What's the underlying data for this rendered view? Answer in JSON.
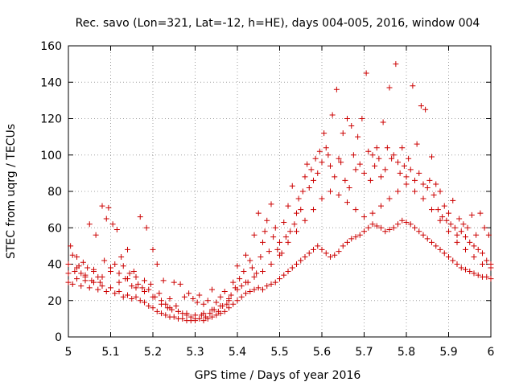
{
  "chart_data": {
    "type": "scatter",
    "title": "Rec. savo (Lon=321, Lat=-12, h=HE), days 004-005, 2016, window 004",
    "xlabel": "GPS time / Days of year 2016",
    "ylabel": "STEC from uqrg / TECUs",
    "xlim": [
      5,
      6
    ],
    "ylim": [
      0,
      160
    ],
    "xticks": [
      "5",
      "5.1",
      "5.2",
      "5.3",
      "5.4",
      "5.5",
      "5.6",
      "5.7",
      "5.8",
      "5.9",
      "6"
    ],
    "yticks": [
      "0",
      "20",
      "40",
      "60",
      "80",
      "100",
      "120",
      "140",
      "160"
    ],
    "grid": true,
    "marker": "plus",
    "color": "#cc0000",
    "series": [
      {
        "x": [
          5.0,
          5.005,
          5.01,
          5.015,
          5.02,
          5.025,
          5.03,
          5.035,
          5.04,
          5.045,
          5.05,
          5.055,
          5.06,
          5.065,
          5.07,
          5.075,
          5.08,
          5.085,
          5.09,
          5.095,
          5.1,
          5.105,
          5.11,
          5.115,
          5.12,
          5.125,
          5.13,
          5.135,
          5.14,
          5.145,
          5.15,
          5.155,
          5.16,
          5.165,
          5.17,
          5.175,
          5.18,
          5.185,
          5.19,
          5.195,
          5.2,
          5.205,
          5.21,
          5.215,
          5.22,
          5.225,
          5.23,
          5.235,
          5.24,
          5.245,
          5.25,
          5.255,
          5.26,
          5.265,
          5.27,
          5.275,
          5.28,
          5.285,
          5.29,
          5.295,
          5.3,
          5.305,
          5.31,
          5.315,
          5.32,
          5.325,
          5.33,
          5.335,
          5.34,
          5.345,
          5.35,
          5.355,
          5.36,
          5.365,
          5.37,
          5.375,
          5.38,
          5.385,
          5.39,
          5.395,
          5.4,
          5.405,
          5.41,
          5.415,
          5.42,
          5.425,
          5.43,
          5.435,
          5.44,
          5.445,
          5.45,
          5.455,
          5.46,
          5.465,
          5.47,
          5.475,
          5.48,
          5.485,
          5.49,
          5.495,
          5.5,
          5.505,
          5.51,
          5.515,
          5.52,
          5.525,
          5.53,
          5.535,
          5.54,
          5.545,
          5.55,
          5.555,
          5.56,
          5.565,
          5.57,
          5.575,
          5.58,
          5.585,
          5.59,
          5.595,
          5.6,
          5.605,
          5.61,
          5.615,
          5.62,
          5.625,
          5.63,
          5.635,
          5.64,
          5.645,
          5.65,
          5.655,
          5.66,
          5.665,
          5.67,
          5.675,
          5.68,
          5.685,
          5.69,
          5.695,
          5.7,
          5.705,
          5.71,
          5.715,
          5.72,
          5.725,
          5.73,
          5.735,
          5.74,
          5.745,
          5.75,
          5.755,
          5.76,
          5.765,
          5.77,
          5.775,
          5.78,
          5.785,
          5.79,
          5.795,
          5.8,
          5.805,
          5.81,
          5.815,
          5.82,
          5.825,
          5.83,
          5.835,
          5.84,
          5.845,
          5.85,
          5.855,
          5.86,
          5.865,
          5.87,
          5.875,
          5.88,
          5.885,
          5.89,
          5.895,
          5.9,
          5.905,
          5.91,
          5.915,
          5.92,
          5.925,
          5.93,
          5.935,
          5.94,
          5.945,
          5.95,
          5.955,
          5.96,
          5.965,
          5.97,
          5.975,
          5.98,
          5.985,
          5.99,
          5.995,
          6.0
        ],
        "y": [
          40,
          50,
          45,
          36,
          44,
          39,
          35,
          41,
          33,
          38,
          62,
          31,
          36,
          56,
          33,
          30,
          72,
          42,
          65,
          71,
          38,
          62,
          40,
          59,
          35,
          44,
          39,
          32,
          48,
          35,
          28,
          36,
          33,
          29,
          66,
          27,
          31,
          60,
          26,
          29,
          48,
          22,
          40,
          24,
          20,
          31,
          18,
          16,
          21,
          15,
          30,
          17,
          14,
          29,
          13,
          22,
          12,
          24,
          11,
          21,
          10,
          19,
          23,
          12,
          18,
          11,
          20,
          13,
          26,
          15,
          19,
          14,
          22,
          17,
          25,
          18,
          20,
          23,
          30,
          27,
          39,
          32,
          28,
          36,
          45,
          30,
          42,
          38,
          56,
          35,
          68,
          44,
          52,
          58,
          64,
          47,
          73,
          55,
          60,
          48,
          52,
          46,
          63,
          55,
          72,
          58,
          83,
          62,
          68,
          76,
          70,
          80,
          88,
          95,
          82,
          92,
          86,
          98,
          90,
          102,
          96,
          112,
          104,
          100,
          94,
          122,
          88,
          136,
          98,
          96,
          112,
          86,
          120,
          82,
          116,
          100,
          92,
          110,
          95,
          120,
          90,
          145,
          102,
          86,
          100,
          94,
          104,
          98,
          88,
          118,
          92,
          104,
          137,
          98,
          100,
          150,
          96,
          90,
          104,
          94,
          88,
          98,
          92,
          138,
          86,
          106,
          90,
          127,
          84,
          125,
          82,
          86,
          99,
          78,
          84,
          70,
          80,
          66,
          72,
          64,
          68,
          62,
          75,
          60,
          56,
          65,
          58,
          62,
          55,
          60,
          52,
          67,
          50,
          56,
          48,
          68,
          46,
          60,
          42,
          56,
          40
        ]
      },
      {
        "x": [
          5.0,
          5.01,
          5.02,
          5.03,
          5.04,
          5.05,
          5.06,
          5.07,
          5.08,
          5.09,
          5.1,
          5.11,
          5.12,
          5.13,
          5.14,
          5.15,
          5.16,
          5.17,
          5.18,
          5.19,
          5.2,
          5.21,
          5.22,
          5.23,
          5.24,
          5.25,
          5.26,
          5.27,
          5.28,
          5.29,
          5.3,
          5.31,
          5.32,
          5.33,
          5.34,
          5.35,
          5.36,
          5.37,
          5.38,
          5.39,
          5.4,
          5.41,
          5.42,
          5.43,
          5.44,
          5.45,
          5.46,
          5.47,
          5.48,
          5.49,
          5.5,
          5.51,
          5.52,
          5.53,
          5.54,
          5.55,
          5.56,
          5.57,
          5.58,
          5.59,
          5.6,
          5.61,
          5.62,
          5.63,
          5.64,
          5.65,
          5.66,
          5.67,
          5.68,
          5.69,
          5.7,
          5.71,
          5.72,
          5.73,
          5.74,
          5.75,
          5.76,
          5.77,
          5.78,
          5.79,
          5.8,
          5.81,
          5.82,
          5.83,
          5.84,
          5.85,
          5.86,
          5.87,
          5.88,
          5.89,
          5.9,
          5.91,
          5.92,
          5.93,
          5.94,
          5.95,
          5.96,
          5.97,
          5.98,
          5.99,
          6.0
        ],
        "y": [
          30,
          29,
          32,
          28,
          31,
          27,
          30,
          26,
          28,
          25,
          27,
          24,
          25,
          22,
          23,
          21,
          22,
          20,
          19,
          17,
          16,
          14,
          13,
          12,
          11,
          11,
          10,
          10,
          9,
          9,
          9,
          10,
          9,
          10,
          11,
          12,
          13,
          14,
          16,
          18,
          20,
          22,
          24,
          25,
          26,
          27,
          26,
          28,
          29,
          30,
          32,
          34,
          36,
          38,
          40,
          42,
          44,
          46,
          48,
          50,
          48,
          46,
          44,
          45,
          47,
          50,
          52,
          54,
          55,
          56,
          58,
          60,
          62,
          61,
          60,
          58,
          59,
          60,
          62,
          64,
          63,
          62,
          60,
          58,
          56,
          54,
          52,
          50,
          48,
          46,
          44,
          42,
          40,
          38,
          37,
          36,
          35,
          34,
          33,
          33,
          32
        ]
      },
      {
        "x": [
          5.0,
          5.02,
          5.04,
          5.06,
          5.08,
          5.1,
          5.12,
          5.14,
          5.16,
          5.18,
          5.2,
          5.22,
          5.24,
          5.26,
          5.28,
          5.3,
          5.32,
          5.34,
          5.36,
          5.38,
          5.4,
          5.42,
          5.44,
          5.46,
          5.48,
          5.5,
          5.52,
          5.54,
          5.56,
          5.58,
          5.6,
          5.62,
          5.64,
          5.66,
          5.68,
          5.7,
          5.72,
          5.74,
          5.76,
          5.78,
          5.8,
          5.82,
          5.84,
          5.86,
          5.88,
          5.9,
          5.92,
          5.94,
          5.96,
          5.98,
          6.0
        ],
        "y": [
          35,
          38,
          34,
          37,
          33,
          36,
          30,
          32,
          27,
          25,
          22,
          18,
          16,
          14,
          13,
          12,
          13,
          15,
          17,
          21,
          26,
          30,
          33,
          36,
          40,
          45,
          52,
          58,
          64,
          70,
          76,
          80,
          78,
          74,
          70,
          66,
          68,
          72,
          76,
          80,
          84,
          80,
          76,
          70,
          64,
          58,
          52,
          48,
          44,
          40,
          38
        ]
      }
    ]
  }
}
